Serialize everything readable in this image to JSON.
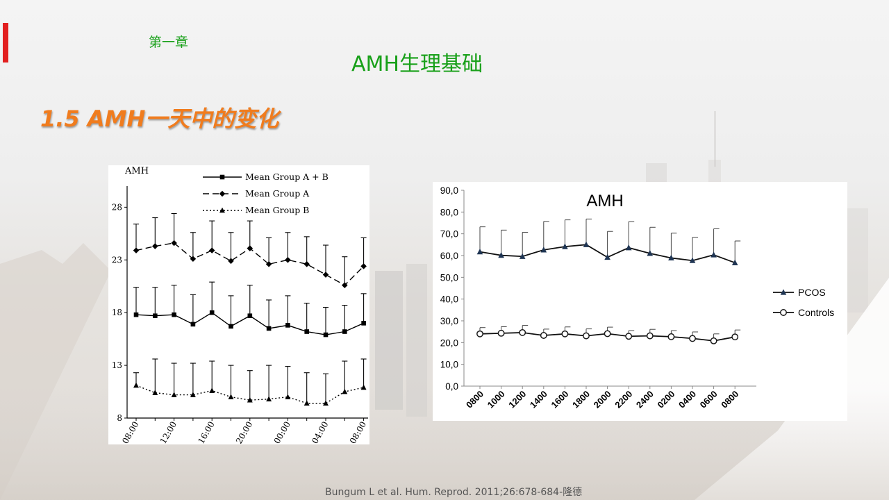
{
  "header": {
    "chapter": "第一章",
    "title": "AMH生理基础",
    "section": "1.5  AMH一天中的变化"
  },
  "citation": "Bungum L et al. Hum. Reprod. 2011;26:678-684-隆德",
  "colors": {
    "accent_green": "#18a019",
    "accent_orange": "#f07c1e",
    "accent_red": "#e21f1f"
  },
  "chart_data": [
    {
      "type": "line",
      "ylabel": "AMH",
      "ylim": [
        8,
        30
      ],
      "yticks": [
        8,
        13,
        18,
        23,
        28
      ],
      "xtick_labels": [
        "08:00",
        "12:00",
        "16:00",
        "20:00",
        "00:00",
        "04:00",
        "08:00"
      ],
      "legend_position": "top-right",
      "error_bars": "upper",
      "series": [
        {
          "name": "Mean Group A + B",
          "marker": "square",
          "dash": "solid",
          "values": [
            17.8,
            17.7,
            17.8,
            16.9,
            18.0,
            16.7,
            17.7,
            16.5,
            16.8,
            16.2,
            15.9,
            16.2,
            17.0
          ],
          "upper": [
            20.4,
            20.4,
            20.6,
            19.7,
            20.9,
            19.6,
            20.6,
            19.2,
            19.6,
            18.9,
            18.5,
            18.7,
            19.8
          ]
        },
        {
          "name": "Mean Group A",
          "marker": "diamond",
          "dash": "dashed",
          "values": [
            23.9,
            24.3,
            24.6,
            23.1,
            23.9,
            22.9,
            24.1,
            22.6,
            23.0,
            22.6,
            21.6,
            20.6,
            22.4
          ],
          "upper": [
            26.4,
            27.0,
            27.4,
            25.6,
            26.7,
            25.6,
            26.7,
            25.1,
            25.6,
            25.2,
            24.4,
            23.3,
            25.1
          ]
        },
        {
          "name": "Mean Group B",
          "marker": "triangle",
          "dash": "dotted",
          "values": [
            11.1,
            10.4,
            10.2,
            10.2,
            10.6,
            10.0,
            9.7,
            9.8,
            10.0,
            9.4,
            9.4,
            10.5,
            10.9
          ],
          "upper": [
            12.3,
            13.6,
            13.2,
            13.2,
            13.4,
            13.0,
            12.5,
            13.0,
            12.9,
            12.3,
            12.2,
            13.4,
            13.6
          ]
        }
      ]
    },
    {
      "type": "line",
      "title": "AMH",
      "ylim": [
        0,
        90
      ],
      "ytick_labels": [
        "0,0",
        "10,0",
        "20,0",
        "30,0",
        "40,0",
        "50,0",
        "60,0",
        "70,0",
        "80,0",
        "90,0"
      ],
      "categories": [
        "0800",
        "1000",
        "1200",
        "1400",
        "1600",
        "1800",
        "2000",
        "2200",
        "2400",
        "0200",
        "0400",
        "0600",
        "0800"
      ],
      "legend_position": "right",
      "error_bars": "upper",
      "series": [
        {
          "name": "PCOS",
          "marker": "triangle",
          "color": "#1f3553",
          "values": [
            61.7,
            60.1,
            59.6,
            62.6,
            64.1,
            65.0,
            59.2,
            63.6,
            61.0,
            58.9,
            57.7,
            60.3,
            56.7
          ],
          "upper": [
            73.2,
            71.7,
            70.7,
            75.7,
            76.4,
            76.8,
            71.1,
            75.6,
            73.0,
            70.3,
            68.4,
            72.3,
            66.7
          ]
        },
        {
          "name": "Controls",
          "marker": "circle",
          "color": "#1a1a1a",
          "values": [
            24.0,
            24.3,
            24.6,
            23.3,
            24.0,
            23.1,
            24.1,
            22.9,
            23.1,
            22.7,
            21.9,
            20.8,
            22.6
          ],
          "upper": [
            26.9,
            27.3,
            27.9,
            26.2,
            27.2,
            26.3,
            27.1,
            25.5,
            26.1,
            25.5,
            24.9,
            24.0,
            25.8
          ]
        }
      ]
    }
  ]
}
